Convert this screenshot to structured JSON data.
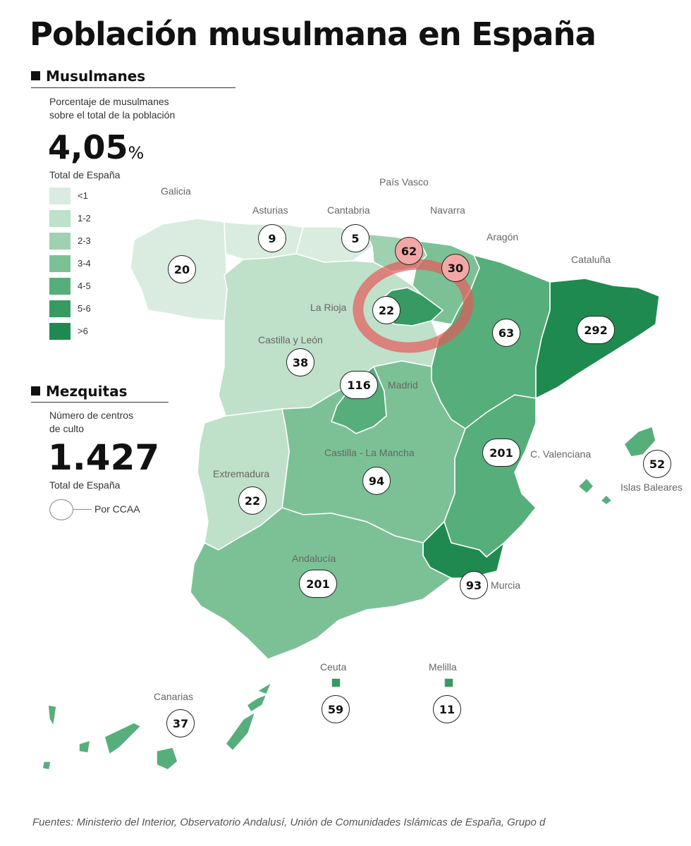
{
  "title": "Población musulmana en España",
  "musulmanes": {
    "heading": "Musulmanes",
    "desc_line1": "Porcentaje de musulmanes",
    "desc_line2": "sobre el total de la población",
    "value": "4,05",
    "unit": "%",
    "total_label": "Total de España"
  },
  "legend": [
    {
      "label": "<1",
      "color": "#d9ecdf"
    },
    {
      "label": "1-2",
      "color": "#bfe0c9"
    },
    {
      "label": "2-3",
      "color": "#9fd1b0"
    },
    {
      "label": "3-4",
      "color": "#7cc196"
    },
    {
      "label": "4-5",
      "color": "#56ae7b"
    },
    {
      "label": "5-6",
      "color": "#369a62"
    },
    {
      "label": ">6",
      "color": "#1f8a50"
    }
  ],
  "mezquitas": {
    "heading": "Mezquitas",
    "desc_line1": "Número de centros",
    "desc_line2": "de culto",
    "value": "1.427",
    "total_label": "Total de España",
    "por_ccaa": "Por CCAA"
  },
  "regions": [
    {
      "name": "Galicia",
      "mosques": "20",
      "color": "#d9ecdf"
    },
    {
      "name": "Asturias",
      "mosques": "9",
      "color": "#d9ecdf"
    },
    {
      "name": "Cantabria",
      "mosques": "5",
      "color": "#d9ecdf"
    },
    {
      "name": "País Vasco",
      "mosques": "62",
      "color": "#9fd1b0"
    },
    {
      "name": "Navarra",
      "mosques": "30",
      "color": "#7cc196"
    },
    {
      "name": "Aragón",
      "mosques": "63",
      "color": "#56ae7b"
    },
    {
      "name": "Cataluña",
      "mosques": "292",
      "color": "#1f8a50"
    },
    {
      "name": "La Rioja",
      "mosques": "22",
      "color": "#369a62"
    },
    {
      "name": "Castilla y León",
      "mosques": "38",
      "color": "#bfe0c9"
    },
    {
      "name": "Madrid",
      "mosques": "116",
      "color": "#56ae7b"
    },
    {
      "name": "Castilla - La Mancha",
      "mosques": "94",
      "color": "#7cc196"
    },
    {
      "name": "C. Valenciana",
      "mosques": "201",
      "color": "#56ae7b"
    },
    {
      "name": "Islas Baleares",
      "mosques": "52",
      "color": "#56ae7b"
    },
    {
      "name": "Extremadura",
      "mosques": "22",
      "color": "#bfe0c9"
    },
    {
      "name": "Andalucía",
      "mosques": "201",
      "color": "#7cc196"
    },
    {
      "name": "Murcia",
      "mosques": "93",
      "color": "#1f8a50"
    },
    {
      "name": "Ceuta",
      "mosques": "59",
      "color": "#369a62"
    },
    {
      "name": "Melilla",
      "mosques": "11",
      "color": "#369a62"
    },
    {
      "name": "Canarias",
      "mosques": "37",
      "color": "#56ae7b"
    }
  ],
  "sources": "Fuentes: Ministerio del Interior, Observatorio Andalusí, Unión de Comunidades Islámicas de España, Grupo d"
}
